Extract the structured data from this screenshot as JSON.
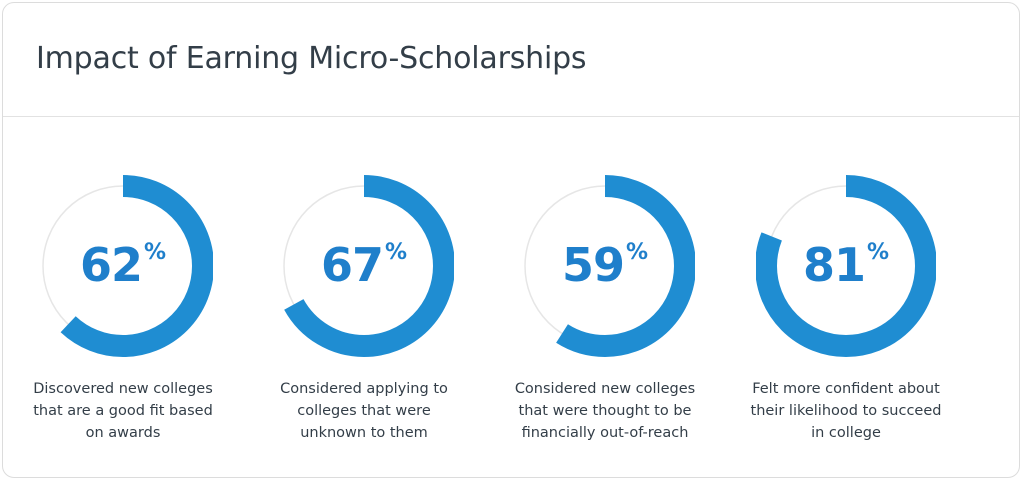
{
  "header": {
    "title": "Impact of Earning Micro-Scholarships"
  },
  "colors": {
    "accent": "#1f8dd2",
    "track": "#e6e6e6",
    "text": "#333e48",
    "label": "#1f7fcb"
  },
  "chart_data": {
    "type": "pie",
    "title": "Impact of Earning Micro-Scholarships",
    "unit": "%",
    "items": [
      {
        "value": 62,
        "unit": "%",
        "caption": [
          "Discovered new colleges",
          "that are a good fit based",
          "on awards"
        ]
      },
      {
        "value": 67,
        "unit": "%",
        "caption": [
          "Considered applying to",
          "colleges that were",
          "unknown to them"
        ]
      },
      {
        "value": 59,
        "unit": "%",
        "caption": [
          "Considered new colleges",
          "that were thought to be",
          "financially out-of-reach"
        ]
      },
      {
        "value": 81,
        "unit": "%",
        "caption": [
          "Felt more confident about",
          "their likelihood to succeed",
          "in college"
        ]
      }
    ]
  }
}
